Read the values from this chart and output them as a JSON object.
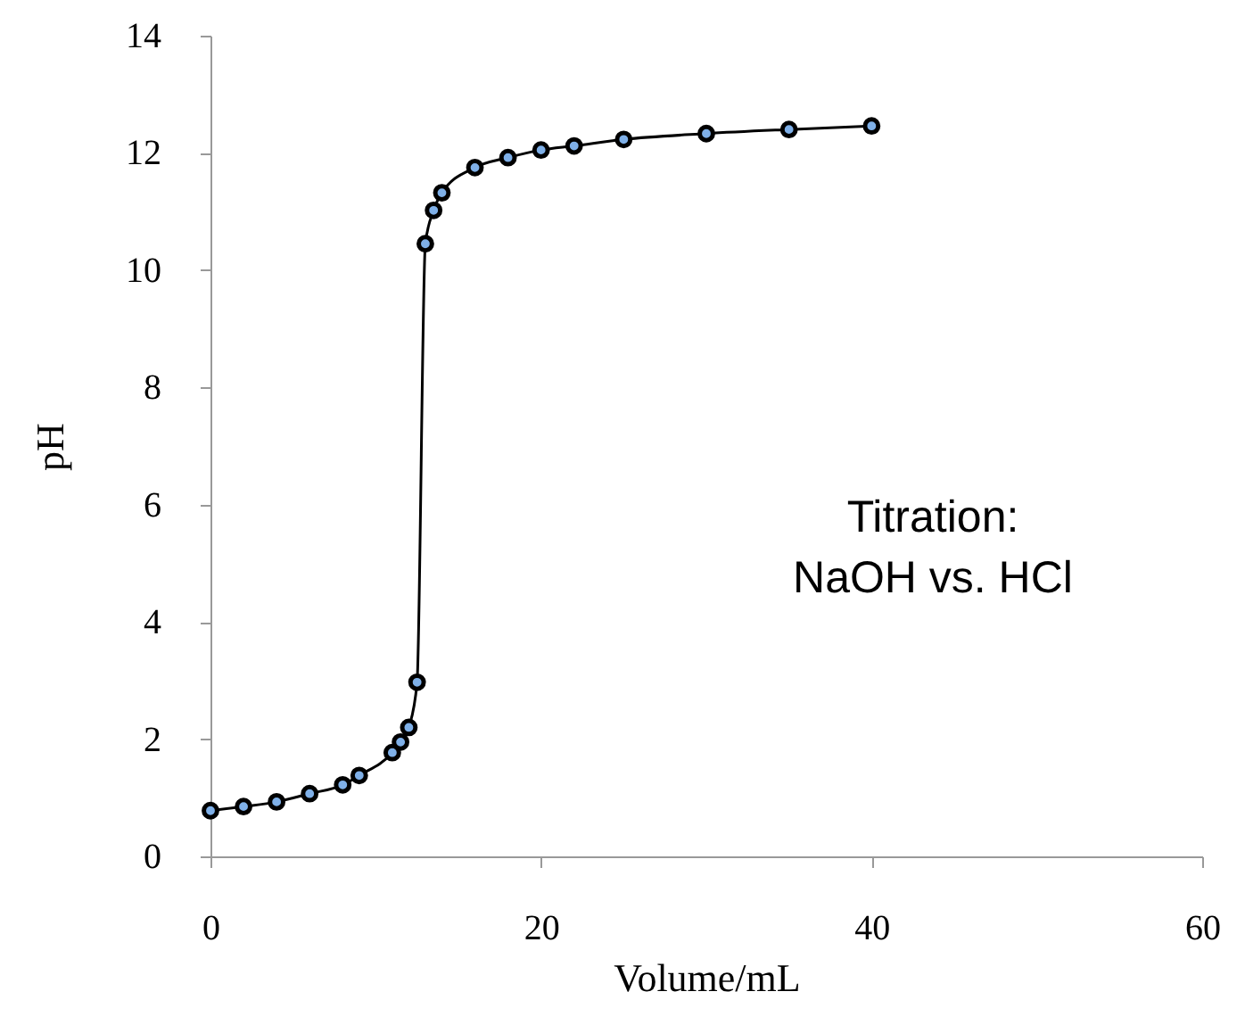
{
  "chart_data": {
    "type": "line",
    "xlabel": "Volume/mL",
    "ylabel": "pH",
    "x": [
      0,
      2,
      4,
      6,
      8,
      9,
      11,
      11.5,
      12,
      12.5,
      13,
      13.5,
      14,
      16,
      18,
      20,
      22,
      25,
      30,
      35,
      40
    ],
    "series": [
      {
        "color": "#000000",
        "values": [
          0.78,
          0.85,
          0.93,
          1.07,
          1.22,
          1.38,
          1.77,
          1.95,
          2.2,
          2.97,
          10.45,
          11.02,
          11.32,
          11.75,
          11.92,
          12.05,
          12.12,
          12.23,
          12.33,
          12.4,
          12.46
        ]
      }
    ],
    "xlim": [
      0,
      60
    ],
    "xticks": [
      0,
      20,
      40,
      60
    ],
    "ylim": [
      0,
      14
    ],
    "yticks": [
      0,
      2,
      4,
      6,
      8,
      10,
      12,
      14
    ],
    "grid": false,
    "marker": "circle",
    "line_style": "solid",
    "annotations": [
      "Titration:\nNaOH vs.  HCl"
    ]
  }
}
